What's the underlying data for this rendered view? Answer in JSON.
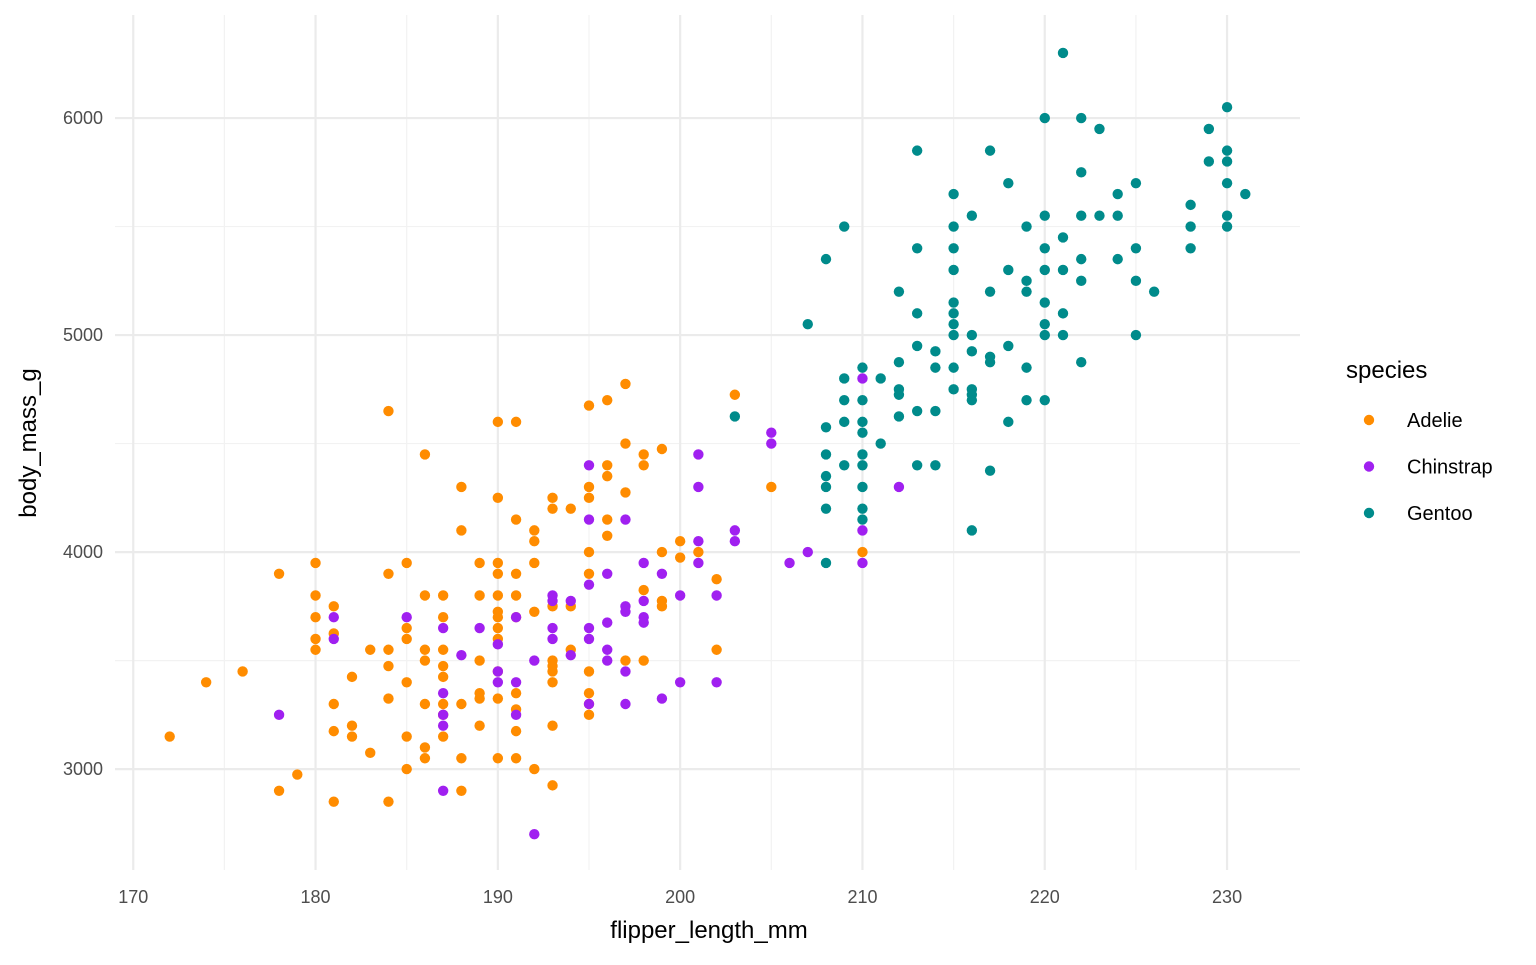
{
  "chart_data": {
    "type": "scatter",
    "xlabel": "flipper_length_mm",
    "ylabel": "body_mass_g",
    "xlim": [
      169,
      234
    ],
    "ylim": [
      2535,
      6475
    ],
    "x_ticks": [
      170,
      180,
      190,
      200,
      210,
      220,
      230
    ],
    "y_ticks": [
      3000,
      4000,
      5000,
      6000
    ],
    "grid": true,
    "legend": {
      "title": "species",
      "placement": "right"
    },
    "series": [
      {
        "name": "Adelie",
        "color": "#FF8C00",
        "points": [
          [
            172,
            3150
          ],
          [
            174,
            3400
          ],
          [
            176,
            3450
          ],
          [
            178,
            3900
          ],
          [
            178,
            2900
          ],
          [
            179,
            2975
          ],
          [
            180,
            3950
          ],
          [
            180,
            3800
          ],
          [
            180,
            3700
          ],
          [
            180,
            3600
          ],
          [
            180,
            3550
          ],
          [
            181,
            3750
          ],
          [
            181,
            3625
          ],
          [
            181,
            3300
          ],
          [
            181,
            3175
          ],
          [
            181,
            2850
          ],
          [
            182,
            3425
          ],
          [
            182,
            3200
          ],
          [
            182,
            3150
          ],
          [
            183,
            3550
          ],
          [
            183,
            3075
          ],
          [
            184,
            4650
          ],
          [
            184,
            3900
          ],
          [
            184,
            3550
          ],
          [
            184,
            3475
          ],
          [
            184,
            3325
          ],
          [
            184,
            2850
          ],
          [
            185,
            3950
          ],
          [
            185,
            3650
          ],
          [
            185,
            3600
          ],
          [
            185,
            3400
          ],
          [
            185,
            3150
          ],
          [
            185,
            3000
          ],
          [
            186,
            4450
          ],
          [
            186,
            3800
          ],
          [
            186,
            3550
          ],
          [
            186,
            3500
          ],
          [
            186,
            3300
          ],
          [
            186,
            3100
          ],
          [
            186,
            3050
          ],
          [
            187,
            3800
          ],
          [
            187,
            3700
          ],
          [
            187,
            3550
          ],
          [
            187,
            3475
          ],
          [
            187,
            3425
          ],
          [
            187,
            3300
          ],
          [
            187,
            3250
          ],
          [
            187,
            3150
          ],
          [
            188,
            4300
          ],
          [
            188,
            4100
          ],
          [
            188,
            3300
          ],
          [
            188,
            3050
          ],
          [
            188,
            2900
          ],
          [
            189,
            3950
          ],
          [
            189,
            3800
          ],
          [
            189,
            3500
          ],
          [
            189,
            3350
          ],
          [
            189,
            3325
          ],
          [
            189,
            3200
          ],
          [
            190,
            4600
          ],
          [
            190,
            4250
          ],
          [
            190,
            3950
          ],
          [
            190,
            3900
          ],
          [
            190,
            3800
          ],
          [
            190,
            3725
          ],
          [
            190,
            3700
          ],
          [
            190,
            3650
          ],
          [
            190,
            3600
          ],
          [
            190,
            3450
          ],
          [
            190,
            3325
          ],
          [
            190,
            3050
          ],
          [
            191,
            4600
          ],
          [
            191,
            4150
          ],
          [
            191,
            3900
          ],
          [
            191,
            3800
          ],
          [
            191,
            3700
          ],
          [
            191,
            3350
          ],
          [
            191,
            3275
          ],
          [
            191,
            3175
          ],
          [
            191,
            3050
          ],
          [
            192,
            4100
          ],
          [
            192,
            4050
          ],
          [
            192,
            3950
          ],
          [
            192,
            3725
          ],
          [
            192,
            3000
          ],
          [
            193,
            4250
          ],
          [
            193,
            4200
          ],
          [
            193,
            3750
          ],
          [
            193,
            3500
          ],
          [
            193,
            3475
          ],
          [
            193,
            3450
          ],
          [
            193,
            3400
          ],
          [
            193,
            3200
          ],
          [
            193,
            2925
          ],
          [
            194,
            4200
          ],
          [
            194,
            3750
          ],
          [
            194,
            3550
          ],
          [
            195,
            4675
          ],
          [
            195,
            4300
          ],
          [
            195,
            4250
          ],
          [
            195,
            4000
          ],
          [
            195,
            3900
          ],
          [
            195,
            3450
          ],
          [
            195,
            3350
          ],
          [
            195,
            3300
          ],
          [
            195,
            3250
          ],
          [
            196,
            4700
          ],
          [
            196,
            4400
          ],
          [
            196,
            4350
          ],
          [
            196,
            4150
          ],
          [
            196,
            4075
          ],
          [
            197,
            4775
          ],
          [
            197,
            4500
          ],
          [
            197,
            4275
          ],
          [
            197,
            3500
          ],
          [
            198,
            4450
          ],
          [
            198,
            4400
          ],
          [
            198,
            3825
          ],
          [
            198,
            3500
          ],
          [
            199,
            4475
          ],
          [
            199,
            4000
          ],
          [
            199,
            3775
          ],
          [
            199,
            3750
          ],
          [
            200,
            4050
          ],
          [
            200,
            3975
          ],
          [
            201,
            4000
          ],
          [
            202,
            3875
          ],
          [
            202,
            3550
          ],
          [
            203,
            4725
          ],
          [
            205,
            4300
          ],
          [
            210,
            4000
          ]
        ]
      },
      {
        "name": "Chinstrap",
        "color": "#A020F0",
        "points": [
          [
            178,
            3250
          ],
          [
            181,
            3700
          ],
          [
            181,
            3600
          ],
          [
            185,
            3700
          ],
          [
            187,
            3650
          ],
          [
            187,
            3350
          ],
          [
            187,
            3250
          ],
          [
            187,
            3200
          ],
          [
            187,
            2900
          ],
          [
            188,
            3525
          ],
          [
            189,
            3650
          ],
          [
            190,
            3575
          ],
          [
            190,
            3450
          ],
          [
            190,
            3400
          ],
          [
            191,
            3700
          ],
          [
            191,
            3400
          ],
          [
            191,
            3250
          ],
          [
            192,
            3500
          ],
          [
            192,
            2700
          ],
          [
            193,
            3800
          ],
          [
            193,
            3775
          ],
          [
            193,
            3650
          ],
          [
            193,
            3600
          ],
          [
            194,
            3775
          ],
          [
            194,
            3525
          ],
          [
            195,
            4400
          ],
          [
            195,
            4150
          ],
          [
            195,
            3850
          ],
          [
            195,
            3650
          ],
          [
            195,
            3600
          ],
          [
            195,
            3300
          ],
          [
            196,
            3900
          ],
          [
            196,
            3675
          ],
          [
            196,
            3550
          ],
          [
            196,
            3500
          ],
          [
            197,
            4150
          ],
          [
            197,
            3750
          ],
          [
            197,
            3725
          ],
          [
            197,
            3450
          ],
          [
            197,
            3300
          ],
          [
            198,
            3950
          ],
          [
            198,
            3775
          ],
          [
            198,
            3700
          ],
          [
            198,
            3675
          ],
          [
            199,
            3900
          ],
          [
            199,
            3325
          ],
          [
            200,
            3800
          ],
          [
            200,
            3400
          ],
          [
            201,
            4450
          ],
          [
            201,
            4300
          ],
          [
            201,
            4050
          ],
          [
            201,
            3950
          ],
          [
            202,
            3800
          ],
          [
            202,
            3400
          ],
          [
            203,
            4100
          ],
          [
            203,
            4050
          ],
          [
            205,
            4550
          ],
          [
            205,
            4500
          ],
          [
            206,
            3950
          ],
          [
            207,
            4000
          ],
          [
            210,
            4800
          ],
          [
            210,
            4100
          ],
          [
            210,
            3950
          ],
          [
            212,
            4300
          ]
        ]
      },
      {
        "name": "Gentoo",
        "color": "#008B8B",
        "points": [
          [
            203,
            4625
          ],
          [
            207,
            5050
          ],
          [
            208,
            5350
          ],
          [
            208,
            4575
          ],
          [
            208,
            4450
          ],
          [
            208,
            4350
          ],
          [
            208,
            4300
          ],
          [
            208,
            4200
          ],
          [
            208,
            3950
          ],
          [
            209,
            5500
          ],
          [
            209,
            4800
          ],
          [
            209,
            4700
          ],
          [
            209,
            4600
          ],
          [
            209,
            4400
          ],
          [
            210,
            4850
          ],
          [
            210,
            4700
          ],
          [
            210,
            4600
          ],
          [
            210,
            4550
          ],
          [
            210,
            4450
          ],
          [
            210,
            4400
          ],
          [
            210,
            4300
          ],
          [
            210,
            4200
          ],
          [
            210,
            4150
          ],
          [
            211,
            4800
          ],
          [
            211,
            4500
          ],
          [
            212,
            5200
          ],
          [
            212,
            4875
          ],
          [
            212,
            4750
          ],
          [
            212,
            4725
          ],
          [
            212,
            4625
          ],
          [
            213,
            5850
          ],
          [
            213,
            5400
          ],
          [
            213,
            5100
          ],
          [
            213,
            4950
          ],
          [
            213,
            4650
          ],
          [
            213,
            4400
          ],
          [
            214,
            4925
          ],
          [
            214,
            4850
          ],
          [
            214,
            4650
          ],
          [
            214,
            4400
          ],
          [
            215,
            5650
          ],
          [
            215,
            5500
          ],
          [
            215,
            5400
          ],
          [
            215,
            5300
          ],
          [
            215,
            5150
          ],
          [
            215,
            5100
          ],
          [
            215,
            5050
          ],
          [
            215,
            5000
          ],
          [
            215,
            4850
          ],
          [
            215,
            4750
          ],
          [
            216,
            5550
          ],
          [
            216,
            5000
          ],
          [
            216,
            4925
          ],
          [
            216,
            4750
          ],
          [
            216,
            4725
          ],
          [
            216,
            4700
          ],
          [
            216,
            4100
          ],
          [
            217,
            5850
          ],
          [
            217,
            5200
          ],
          [
            217,
            4900
          ],
          [
            217,
            4875
          ],
          [
            217,
            4375
          ],
          [
            218,
            5700
          ],
          [
            218,
            5300
          ],
          [
            218,
            4950
          ],
          [
            218,
            4600
          ],
          [
            219,
            5500
          ],
          [
            219,
            5250
          ],
          [
            219,
            5200
          ],
          [
            219,
            4850
          ],
          [
            219,
            4700
          ],
          [
            220,
            6000
          ],
          [
            220,
            5550
          ],
          [
            220,
            5400
          ],
          [
            220,
            5300
          ],
          [
            220,
            5150
          ],
          [
            220,
            5050
          ],
          [
            220,
            5000
          ],
          [
            220,
            4700
          ],
          [
            221,
            6300
          ],
          [
            221,
            5450
          ],
          [
            221,
            5300
          ],
          [
            221,
            5100
          ],
          [
            221,
            5000
          ],
          [
            222,
            6000
          ],
          [
            222,
            5750
          ],
          [
            222,
            5550
          ],
          [
            222,
            5350
          ],
          [
            222,
            5250
          ],
          [
            222,
            4875
          ],
          [
            223,
            5950
          ],
          [
            223,
            5550
          ],
          [
            224,
            5650
          ],
          [
            224,
            5550
          ],
          [
            224,
            5350
          ],
          [
            225,
            5700
          ],
          [
            225,
            5400
          ],
          [
            225,
            5250
          ],
          [
            225,
            5000
          ],
          [
            226,
            5200
          ],
          [
            228,
            5600
          ],
          [
            228,
            5500
          ],
          [
            228,
            5400
          ],
          [
            229,
            5950
          ],
          [
            229,
            5800
          ],
          [
            230,
            6050
          ],
          [
            230,
            5850
          ],
          [
            230,
            5800
          ],
          [
            230,
            5700
          ],
          [
            230,
            5550
          ],
          [
            230,
            5500
          ],
          [
            231,
            5650
          ]
        ]
      }
    ]
  }
}
